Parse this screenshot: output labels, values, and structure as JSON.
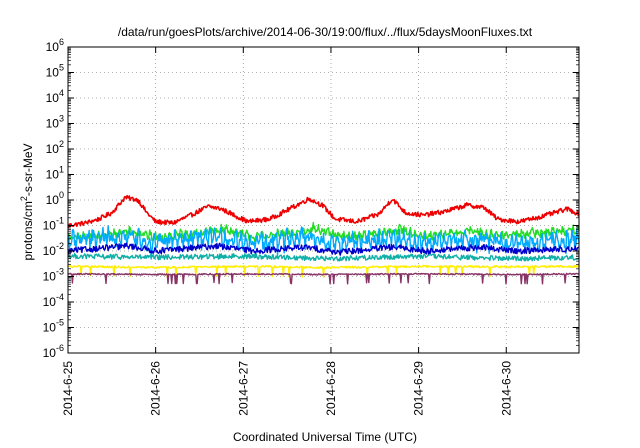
{
  "chart_data": {
    "type": "line",
    "title": "/data/run/goesPlots/archive/2014-06-30/19:00/flux/../flux/5daysMoonFluxes.txt",
    "xlabel": "Coordinated Universal Time (UTC)",
    "ylabel": {
      "base": "protons/cm",
      "sup": "2",
      "rest": "-s-sr-MeV"
    },
    "y_scale": "log",
    "ylim": [
      -6,
      6
    ],
    "y_tick_exponents": [
      -6,
      -5,
      -4,
      -3,
      -2,
      -1,
      0,
      1,
      2,
      3,
      4,
      5,
      6
    ],
    "y_tick_base": "10",
    "x_start_date": "2014-6-25",
    "xlim_days": [
      0,
      5.83
    ],
    "x_ticks": [
      {
        "day": 0,
        "label": "2014-6-25"
      },
      {
        "day": 1,
        "label": "2014-6-26"
      },
      {
        "day": 2,
        "label": "2014-6-27"
      },
      {
        "day": 3,
        "label": "2014-6-28"
      },
      {
        "day": 4,
        "label": "2014-6-29"
      },
      {
        "day": 5,
        "label": "2014-6-30"
      }
    ],
    "grid": true,
    "grid_style": "dotted",
    "series": [
      {
        "color": "#ee0000",
        "kind": "red",
        "anchors": [
          [
            0,
            -1.0
          ],
          [
            0.2,
            -0.9
          ],
          [
            0.35,
            -0.75
          ],
          [
            0.5,
            -0.5
          ],
          [
            0.65,
            0.1
          ],
          [
            0.8,
            0.0
          ],
          [
            0.9,
            -0.5
          ],
          [
            1.0,
            -0.85
          ],
          [
            1.2,
            -0.9
          ],
          [
            1.4,
            -0.6
          ],
          [
            1.6,
            -0.25
          ],
          [
            1.75,
            -0.35
          ],
          [
            1.9,
            -0.6
          ],
          [
            2.05,
            -0.85
          ],
          [
            2.3,
            -0.75
          ],
          [
            2.5,
            -0.4
          ],
          [
            2.75,
            0.05
          ],
          [
            2.9,
            -0.2
          ],
          [
            3.05,
            -0.75
          ],
          [
            3.3,
            -0.85
          ],
          [
            3.55,
            -0.55
          ],
          [
            3.7,
            0.05
          ],
          [
            3.85,
            -0.5
          ],
          [
            4.05,
            -0.6
          ],
          [
            4.3,
            -0.45
          ],
          [
            4.55,
            -0.2
          ],
          [
            4.75,
            -0.3
          ],
          [
            4.9,
            -0.75
          ],
          [
            5.15,
            -0.85
          ],
          [
            5.4,
            -0.65
          ],
          [
            5.6,
            -0.45
          ],
          [
            5.7,
            -0.35
          ],
          [
            5.83,
            -0.55
          ]
        ],
        "amp": 0.09
      },
      {
        "color": "#22dd22",
        "kind": "green",
        "anchors": [
          [
            0,
            -1.5
          ],
          [
            0.5,
            -1.35
          ],
          [
            0.7,
            -1.2
          ],
          [
            1.0,
            -1.45
          ],
          [
            1.5,
            -1.3
          ],
          [
            1.8,
            -1.15
          ],
          [
            2.1,
            -1.45
          ],
          [
            2.6,
            -1.3
          ],
          [
            2.8,
            -1.1
          ],
          [
            3.1,
            -1.45
          ],
          [
            3.6,
            -1.3
          ],
          [
            3.8,
            -1.15
          ],
          [
            4.1,
            -1.45
          ],
          [
            4.6,
            -1.2
          ],
          [
            4.9,
            -1.4
          ],
          [
            5.3,
            -1.3
          ],
          [
            5.83,
            -1.15
          ]
        ],
        "amp": 0.14
      },
      {
        "color": "#00aaff",
        "kind": "lightblue",
        "anchors": [
          [
            0,
            -1.55
          ],
          [
            0.7,
            -1.4
          ],
          [
            1.0,
            -1.65
          ],
          [
            1.7,
            -1.45
          ],
          [
            2.1,
            -1.65
          ],
          [
            2.7,
            -1.45
          ],
          [
            3.1,
            -1.7
          ],
          [
            3.7,
            -1.5
          ],
          [
            4.1,
            -1.7
          ],
          [
            4.7,
            -1.5
          ],
          [
            5.1,
            -1.7
          ],
          [
            5.83,
            -1.55
          ]
        ],
        "amp": 0.28,
        "dips": true
      },
      {
        "color": "#0000cc",
        "kind": "blue",
        "anchors": [
          [
            0,
            -2.0
          ],
          [
            0.7,
            -1.8
          ],
          [
            1.0,
            -2.0
          ],
          [
            1.7,
            -1.8
          ],
          [
            2.1,
            -2.0
          ],
          [
            2.7,
            -1.85
          ],
          [
            3.1,
            -2.05
          ],
          [
            3.7,
            -1.85
          ],
          [
            4.1,
            -2.0
          ],
          [
            4.7,
            -1.85
          ],
          [
            5.1,
            -2.0
          ],
          [
            5.83,
            -1.9
          ]
        ],
        "amp": 0.12
      },
      {
        "color": "#10b0a8",
        "kind": "teal",
        "anchors": [
          [
            0,
            -2.2
          ],
          [
            1.0,
            -2.25
          ],
          [
            2.0,
            -2.2
          ],
          [
            3.0,
            -2.3
          ],
          [
            4.0,
            -2.2
          ],
          [
            5.0,
            -2.3
          ],
          [
            5.83,
            -2.25
          ]
        ],
        "amp": 0.1
      },
      {
        "color": "#ffee00",
        "kind": "yellow",
        "anchors": [
          [
            0,
            -2.6
          ],
          [
            1.0,
            -2.65
          ],
          [
            2.0,
            -2.6
          ],
          [
            3.0,
            -2.65
          ],
          [
            4.0,
            -2.6
          ],
          [
            5.0,
            -2.62
          ],
          [
            5.83,
            -2.6
          ]
        ],
        "amp": 0.04,
        "dips": true
      },
      {
        "color": "#883366",
        "kind": "purple",
        "anchors": [
          [
            0,
            -2.9
          ],
          [
            1.0,
            -2.92
          ],
          [
            2.0,
            -2.9
          ],
          [
            3.0,
            -2.92
          ],
          [
            4.0,
            -2.9
          ],
          [
            5.0,
            -2.92
          ],
          [
            5.83,
            -2.9
          ]
        ],
        "amp": 0.025,
        "dips": true
      }
    ]
  }
}
